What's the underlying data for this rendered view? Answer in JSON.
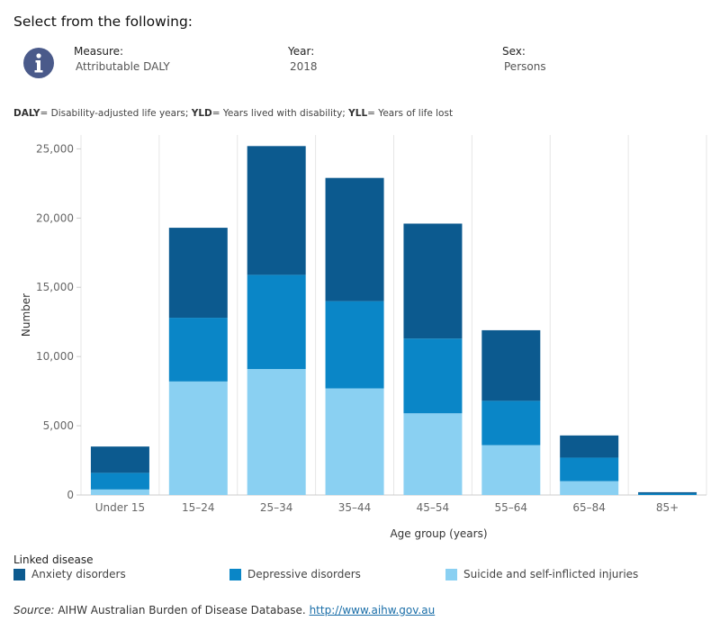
{
  "header": {
    "title": "Select from the following:"
  },
  "filters": [
    {
      "label": "Measure:",
      "value": "Attributable DALY"
    },
    {
      "label": "Year:",
      "value": "2018"
    },
    {
      "label": "Sex:",
      "value": "Persons"
    }
  ],
  "abbreviations": [
    {
      "abbr": "DALY",
      "text": "= Disability-adjusted life years; "
    },
    {
      "abbr": "YLD",
      "text": "= Years lived with disability; "
    },
    {
      "abbr": "YLL",
      "text": "= Years of life lost"
    }
  ],
  "legend": {
    "title": "Linked disease"
  },
  "source": {
    "prefix": "Source:",
    "text": " AIHW Australian Burden of Disease Database. ",
    "link": "http://www.aihw.gov.au"
  },
  "colors": {
    "anxiety": "#0c5a8f",
    "depressive": "#0a86c7",
    "suicide": "#8ad0f2",
    "grid": "#e6e6e6",
    "axis": "#cccccc"
  },
  "icons": {
    "info": "info-icon"
  },
  "chart_data": {
    "type": "bar",
    "stacked": true,
    "categories": [
      "Under 15",
      "15–24",
      "25–34",
      "35–44",
      "45–54",
      "55–64",
      "65–84",
      "85+"
    ],
    "series": [
      {
        "name": "Suicide and self-inflicted injuries",
        "values": [
          400,
          8200,
          9100,
          7700,
          5900,
          3600,
          1000,
          0
        ]
      },
      {
        "name": "Depressive disorders",
        "values": [
          1200,
          4600,
          6800,
          6300,
          5400,
          3200,
          1700,
          100
        ]
      },
      {
        "name": "Anxiety disorders",
        "values": [
          1900,
          6500,
          9300,
          8900,
          8300,
          5100,
          1600,
          100
        ]
      }
    ],
    "legend_order": [
      "Anxiety disorders",
      "Depressive disorders",
      "Suicide and self-inflicted injuries"
    ],
    "xlabel": "Age group (years)",
    "ylabel": "Number",
    "ylim": [
      0,
      26000
    ],
    "yticks": [
      0,
      5000,
      10000,
      15000,
      20000,
      25000
    ],
    "ytick_labels": [
      "0",
      "5,000",
      "10,000",
      "15,000",
      "20,000",
      "25,000"
    ],
    "grid": "vertical",
    "legend_position": "bottom"
  }
}
